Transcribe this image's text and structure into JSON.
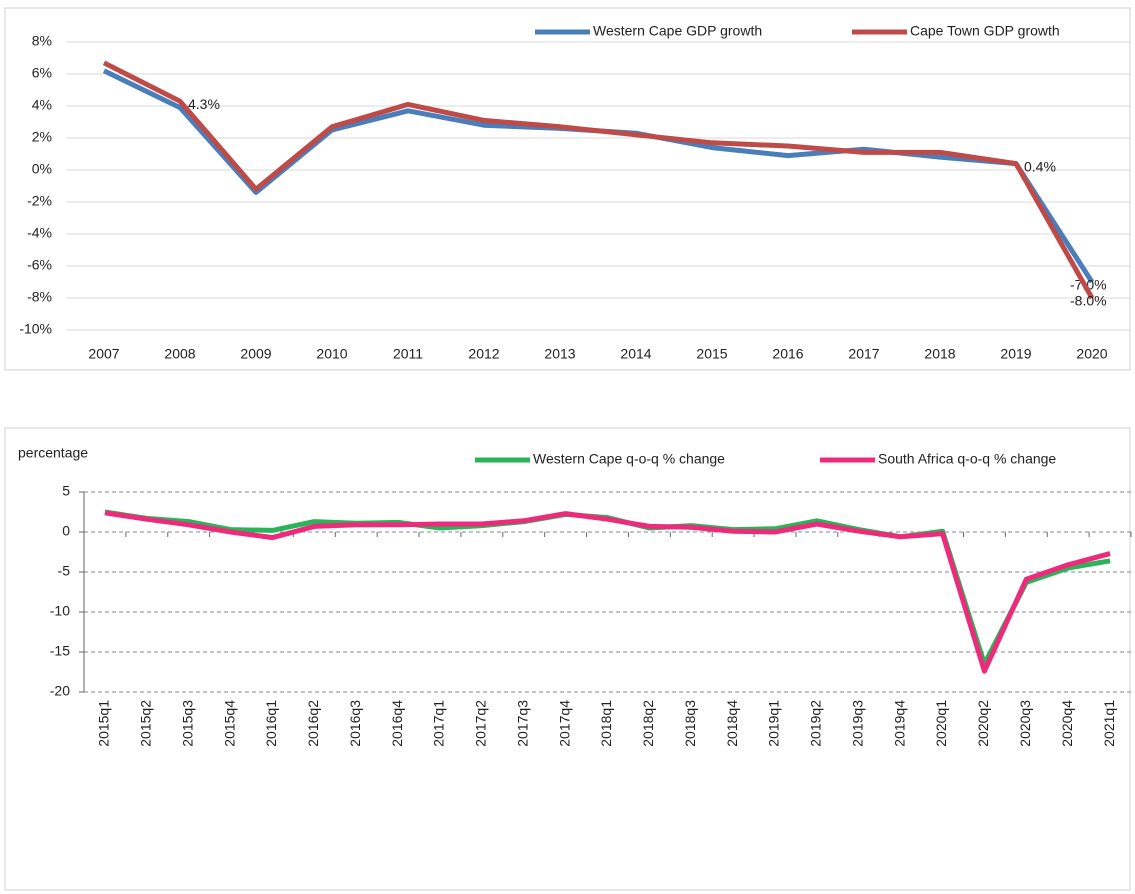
{
  "chart_data": [
    {
      "type": "line",
      "categories": [
        "2007",
        "2008",
        "2009",
        "2010",
        "2011",
        "2012",
        "2013",
        "2014",
        "2015",
        "2016",
        "2017",
        "2018",
        "2019",
        "2020"
      ],
      "series": [
        {
          "name": "Western Cape GDP growth",
          "color": "#4a7ebb",
          "values": [
            6.2,
            3.9,
            -1.4,
            2.5,
            3.7,
            2.8,
            2.6,
            2.3,
            1.4,
            0.9,
            1.3,
            0.8,
            0.4,
            -7.0
          ],
          "value_labels": [
            null,
            null,
            null,
            null,
            null,
            null,
            null,
            null,
            null,
            null,
            null,
            null,
            null,
            "-7.0%"
          ]
        },
        {
          "name": "Cape Town GDP growth",
          "color": "#be4b48",
          "values": [
            6.7,
            4.3,
            -1.2,
            2.7,
            4.1,
            3.1,
            2.7,
            2.2,
            1.7,
            1.5,
            1.1,
            1.1,
            0.4,
            -8.0
          ],
          "value_labels": [
            null,
            "4.3%",
            null,
            null,
            null,
            null,
            null,
            null,
            null,
            null,
            null,
            null,
            "0.4%",
            "-8.0%"
          ]
        }
      ],
      "ylim": [
        -10,
        8
      ],
      "yticks": [
        {
          "value": -10,
          "label": "-10%"
        },
        {
          "value": -8,
          "label": "-8%"
        },
        {
          "value": -6,
          "label": "-6%"
        },
        {
          "value": -4,
          "label": "-4%"
        },
        {
          "value": -2,
          "label": "-2%"
        },
        {
          "value": 0,
          "label": "0%"
        },
        {
          "value": 2,
          "label": "2%"
        },
        {
          "value": 4,
          "label": "4%"
        },
        {
          "value": 6,
          "label": "6%"
        },
        {
          "value": 8,
          "label": "8%"
        }
      ],
      "grid": true,
      "legend": "top-right"
    },
    {
      "type": "line",
      "y_label": "percentage",
      "categories": [
        "2015q1",
        "2015q2",
        "2015q3",
        "2015q4",
        "2016q1",
        "2016q2",
        "2016q3",
        "2016q4",
        "2017q1",
        "2017q2",
        "2017q3",
        "2017q4",
        "2018q1",
        "2018q2",
        "2018q3",
        "2018q4",
        "2019q1",
        "2019q2",
        "2019q3",
        "2019q4",
        "2020q1",
        "2020q2",
        "2020q3",
        "2020q4",
        "2021q1"
      ],
      "series": [
        {
          "name": "Western Cape q-o-q % change",
          "color": "#2bb35a",
          "values": [
            2.5,
            1.7,
            1.3,
            0.3,
            0.2,
            1.3,
            1.1,
            1.2,
            0.5,
            0.8,
            1.3,
            2.2,
            1.8,
            0.5,
            0.8,
            0.3,
            0.4,
            1.4,
            0.3,
            -0.6,
            0.1,
            -16.5,
            -6.3,
            -4.5,
            -3.6
          ]
        },
        {
          "name": "South Africa q-o-q % change",
          "color": "#ee2a7b",
          "values": [
            2.4,
            1.6,
            0.9,
            0.0,
            -0.7,
            0.7,
            0.9,
            0.9,
            1.0,
            1.0,
            1.4,
            2.3,
            1.6,
            0.7,
            0.6,
            0.1,
            0.0,
            1.0,
            0.1,
            -0.6,
            -0.2,
            -17.4,
            -5.9,
            -4.1,
            -2.7
          ]
        }
      ],
      "ylim": [
        -20,
        5
      ],
      "yticks": [
        -20,
        -15,
        -10,
        -5,
        0,
        5
      ],
      "grid": true,
      "legend": "top-right"
    }
  ]
}
